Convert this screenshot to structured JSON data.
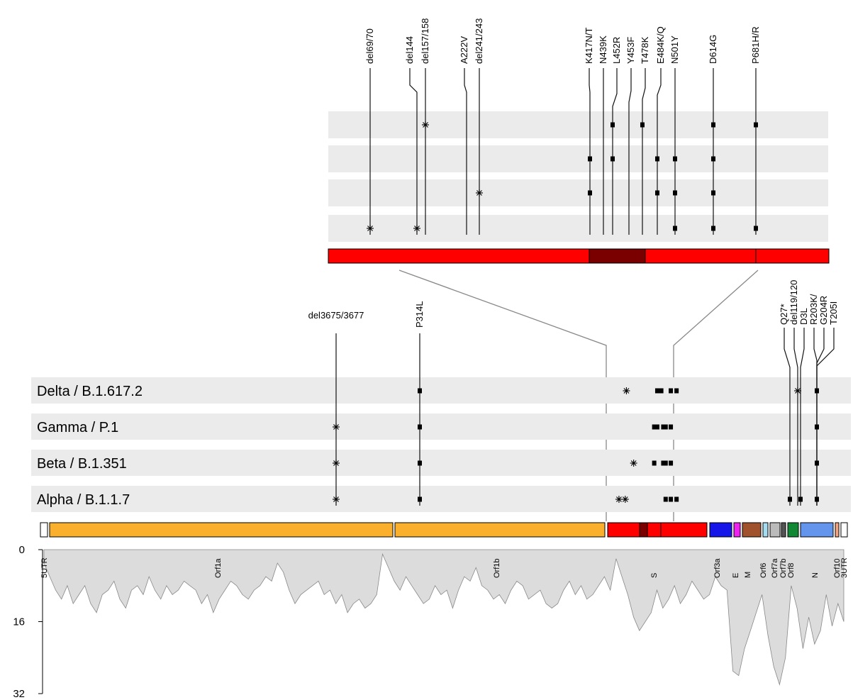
{
  "spike_mutations": [
    {
      "label": "del69/70",
      "type": "del",
      "variants": [
        "Alpha"
      ]
    },
    {
      "label": "del144",
      "type": "del",
      "variants": [
        "Alpha"
      ]
    },
    {
      "label": "del157/158",
      "type": "del",
      "variants": [
        "Delta"
      ]
    },
    {
      "label": "A222V",
      "type": "sub",
      "variants": []
    },
    {
      "label": "del241/243",
      "type": "del",
      "variants": [
        "Beta"
      ]
    },
    {
      "label": "K417N/T",
      "type": "sub",
      "variants": [
        "Gamma",
        "Beta"
      ]
    },
    {
      "label": "N439K",
      "type": "sub",
      "variants": []
    },
    {
      "label": "L452R",
      "type": "sub",
      "variants": [
        "Delta",
        "Gamma"
      ]
    },
    {
      "label": "Y453F",
      "type": "sub",
      "variants": []
    },
    {
      "label": "T478K",
      "type": "sub",
      "variants": [
        "Delta"
      ]
    },
    {
      "label": "E484K/Q",
      "type": "sub",
      "variants": [
        "Gamma",
        "Beta"
      ]
    },
    {
      "label": "N501Y",
      "type": "sub",
      "variants": [
        "Gamma",
        "Beta",
        "Alpha"
      ]
    },
    {
      "label": "D614G",
      "type": "sub",
      "variants": [
        "Delta",
        "Gamma",
        "Beta",
        "Alpha"
      ]
    },
    {
      "label": "P681H/R",
      "type": "sub",
      "variants": [
        "Delta",
        "Alpha"
      ]
    }
  ],
  "genome_mutations": [
    {
      "label": "del3675/3677",
      "type": "del",
      "variants": [
        "Gamma",
        "Beta",
        "Alpha"
      ]
    },
    {
      "label": "P314L",
      "type": "sub",
      "variants": [
        "Delta",
        "Gamma",
        "Beta",
        "Alpha"
      ]
    },
    {
      "label": "Q27*",
      "type": "sub",
      "variants": [
        "Alpha"
      ]
    },
    {
      "label": "del119/120",
      "type": "del",
      "variants": [
        "Delta"
      ]
    },
    {
      "label": "D3L",
      "type": "sub",
      "variants": [
        "Alpha"
      ]
    },
    {
      "label": "R203K/",
      "type": "sub",
      "variants": [
        "Delta",
        "Gamma",
        "Beta",
        "Alpha"
      ]
    },
    {
      "label": "G204R",
      "type": "sub",
      "variants": []
    },
    {
      "label": "T205I",
      "type": "sub",
      "variants": []
    }
  ],
  "variants": [
    {
      "key": "Delta",
      "label": "Delta / B.1.617.2"
    },
    {
      "key": "Gamma",
      "label": "Gamma / P.1"
    },
    {
      "key": "Beta",
      "label": "Beta / B.1.351"
    },
    {
      "key": "Alpha",
      "label": "Alpha / B.1.1.7"
    }
  ],
  "genes": [
    {
      "name": "5UTR",
      "color": "#ffffff"
    },
    {
      "name": "Orf1a",
      "color": "#fbb02d"
    },
    {
      "name": "Orf1b",
      "color": "#fbb02d"
    },
    {
      "name": "S",
      "color": "#ff0000"
    },
    {
      "name": "Orf3a",
      "color": "#1616e8"
    },
    {
      "name": "E",
      "color": "#ee22ee"
    },
    {
      "name": "M",
      "color": "#a0522d"
    },
    {
      "name": "Orf6",
      "color": "#a6dcef"
    },
    {
      "name": "Orf7a",
      "color": "#bbbbbb"
    },
    {
      "name": "Orf7b",
      "color": "#555555"
    },
    {
      "name": "Orf8",
      "color": "#118833"
    },
    {
      "name": "N",
      "color": "#6495ed"
    },
    {
      "name": "Orf10",
      "color": "#f4a582"
    },
    {
      "name": "3UTR",
      "color": "#ffffff"
    }
  ],
  "spike_colors": {
    "bar": "#ff0000",
    "rbd": "#7a0000"
  },
  "axis": {
    "ticks": [
      "0",
      "16",
      "32"
    ]
  },
  "coverage_profile": [
    3,
    6,
    9,
    11,
    8,
    12,
    10,
    8,
    12,
    14,
    10,
    9,
    7,
    11,
    13,
    9,
    8,
    10,
    6,
    9,
    11,
    8,
    10,
    9,
    7,
    8,
    9,
    12,
    10,
    14,
    11,
    9,
    7,
    8,
    10,
    11,
    9,
    8,
    6,
    7,
    3,
    5,
    9,
    12,
    10,
    9,
    8,
    7,
    10,
    9,
    12,
    10,
    14,
    12,
    11,
    13,
    12,
    10,
    1,
    4,
    7,
    9,
    6,
    8,
    10,
    12,
    11,
    8,
    10,
    9,
    13,
    9,
    6,
    7,
    4,
    8,
    9,
    11,
    10,
    12,
    9,
    7,
    8,
    11,
    10,
    9,
    12,
    13,
    12,
    9,
    7,
    10,
    8,
    11,
    10,
    8,
    6,
    9,
    2,
    6,
    10,
    15,
    18,
    16,
    14,
    9,
    13,
    11,
    8,
    12,
    10,
    7,
    9,
    11,
    10,
    6,
    8,
    9,
    27,
    28,
    22,
    18,
    14,
    10,
    19,
    26,
    30,
    24,
    8,
    13,
    22,
    15,
    21,
    18,
    10,
    17,
    12,
    16
  ]
}
